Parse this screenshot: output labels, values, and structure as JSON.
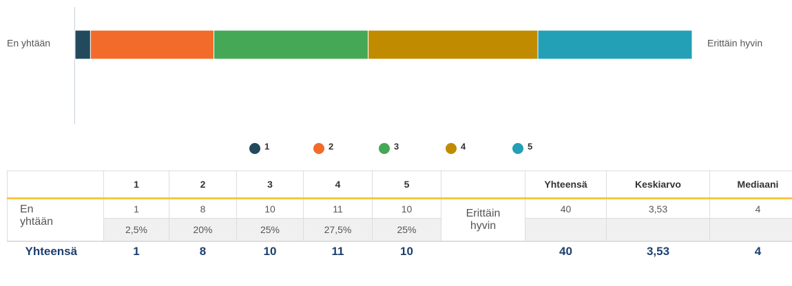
{
  "chart_data": {
    "type": "bar",
    "orientation": "horizontal",
    "stacked": true,
    "left_label": "En yhtään",
    "right_label": "Erittäin hyvin",
    "xlim": [
      0,
      40
    ],
    "series": [
      {
        "name": "1",
        "color": "#234a5c",
        "values": [
          1
        ]
      },
      {
        "name": "2",
        "color": "#f26b2a",
        "values": [
          8
        ]
      },
      {
        "name": "3",
        "color": "#44a857",
        "values": [
          10
        ]
      },
      {
        "name": "4",
        "color": "#c18b00",
        "values": [
          11
        ]
      },
      {
        "name": "5",
        "color": "#23a0b5",
        "values": [
          10
        ]
      }
    ]
  },
  "table": {
    "columns": [
      "1",
      "2",
      "3",
      "4",
      "5"
    ],
    "summary_columns": [
      "Yhteensä",
      "Keskiarvo",
      "Mediaani"
    ],
    "row": {
      "left_label": "En yhtään",
      "counts": [
        1,
        8,
        10,
        11,
        10
      ],
      "percents": [
        "2,5%",
        "20%",
        "25%",
        "27,5%",
        "25%"
      ],
      "right_label": "Erittäin hyvin",
      "summary": [
        40,
        "3,53",
        4
      ]
    },
    "footer": {
      "label": "Yhteensä",
      "counts": [
        1,
        8,
        10,
        11,
        10
      ],
      "summary": [
        40,
        "3,53",
        4
      ]
    }
  }
}
